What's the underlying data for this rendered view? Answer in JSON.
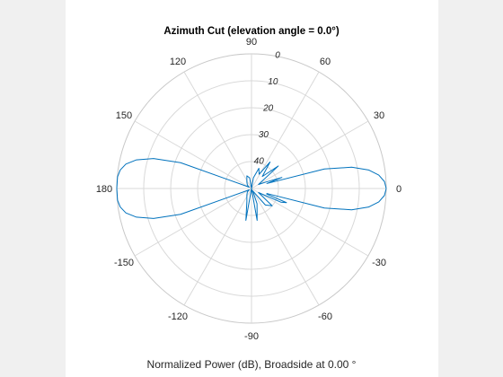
{
  "window": {
    "background": "#f0f0f0",
    "axes_background": "#ffffff"
  },
  "chart_data": {
    "type": "polar-line",
    "title": "Azimuth Cut (elevation angle = 0.0°)",
    "footer": "Normalized Power (dB), Broadside at 0.00 °",
    "angle_ticks_deg": [
      0,
      30,
      60,
      90,
      120,
      150,
      180,
      -150,
      -120,
      -90,
      -60,
      -30
    ],
    "angle_tick_labels": [
      "0",
      "30",
      "60",
      "90",
      "120",
      "150",
      "180",
      "-150",
      "-120",
      "-90",
      "-60",
      "-30"
    ],
    "radial_ticks_db": [
      0,
      10,
      20,
      30,
      40
    ],
    "radial_tick_labels": [
      "0",
      "10",
      "20",
      "30",
      "40"
    ],
    "radial_axis_max_db": 50,
    "grid": true,
    "line_color": "#0072bd",
    "grid_color": "#d9d9d9",
    "series": [
      {
        "points": [
          {
            "az": 0,
            "db": 0
          },
          {
            "az": 3,
            "db": 0.6
          },
          {
            "az": 6,
            "db": 2.5
          },
          {
            "az": 9,
            "db": 6
          },
          {
            "az": 12,
            "db": 12
          },
          {
            "az": 15,
            "db": 22
          },
          {
            "az": 18,
            "db": 44
          },
          {
            "az": 20,
            "db": 38
          },
          {
            "az": 24,
            "db": 44
          },
          {
            "az": 30,
            "db": 47
          },
          {
            "az": 40,
            "db": 37
          },
          {
            "az": 48,
            "db": 44
          },
          {
            "az": 55,
            "db": 38
          },
          {
            "az": 62,
            "db": 44
          },
          {
            "az": 70,
            "db": 42
          },
          {
            "az": 80,
            "db": 46
          },
          {
            "az": 90,
            "db": 50
          },
          {
            "az": 100,
            "db": 46
          },
          {
            "az": 110,
            "db": 45
          },
          {
            "az": 125,
            "db": 47
          },
          {
            "az": 140,
            "db": 48
          },
          {
            "az": 150,
            "db": 49
          },
          {
            "az": 160,
            "db": 22
          },
          {
            "az": 163,
            "db": 12
          },
          {
            "az": 166,
            "db": 6
          },
          {
            "az": 169,
            "db": 2.5
          },
          {
            "az": 172,
            "db": 0.8
          },
          {
            "az": 175,
            "db": 0.1
          },
          {
            "az": 180,
            "db": 0
          },
          {
            "az": -175,
            "db": 0.1
          },
          {
            "az": -172,
            "db": 0.8
          },
          {
            "az": -169,
            "db": 2.5
          },
          {
            "az": -166,
            "db": 6
          },
          {
            "az": -163,
            "db": 12
          },
          {
            "az": -160,
            "db": 22
          },
          {
            "az": -150,
            "db": 49
          },
          {
            "az": -140,
            "db": 48
          },
          {
            "az": -125,
            "db": 47
          },
          {
            "az": -110,
            "db": 45
          },
          {
            "az": -100,
            "db": 38
          },
          {
            "az": -90,
            "db": 50
          },
          {
            "az": -80,
            "db": 38
          },
          {
            "az": -70,
            "db": 44
          },
          {
            "az": -62,
            "db": 49
          },
          {
            "az": -50,
            "db": 42
          },
          {
            "az": -40,
            "db": 40
          },
          {
            "az": -30,
            "db": 47
          },
          {
            "az": -25,
            "db": 38
          },
          {
            "az": -22,
            "db": 36
          },
          {
            "az": -20,
            "db": 44
          },
          {
            "az": -18,
            "db": 44
          },
          {
            "az": -15,
            "db": 22
          },
          {
            "az": -12,
            "db": 12
          },
          {
            "az": -9,
            "db": 6
          },
          {
            "az": -6,
            "db": 2.5
          },
          {
            "az": -3,
            "db": 0.6
          },
          {
            "az": 0,
            "db": 0
          }
        ]
      }
    ]
  }
}
